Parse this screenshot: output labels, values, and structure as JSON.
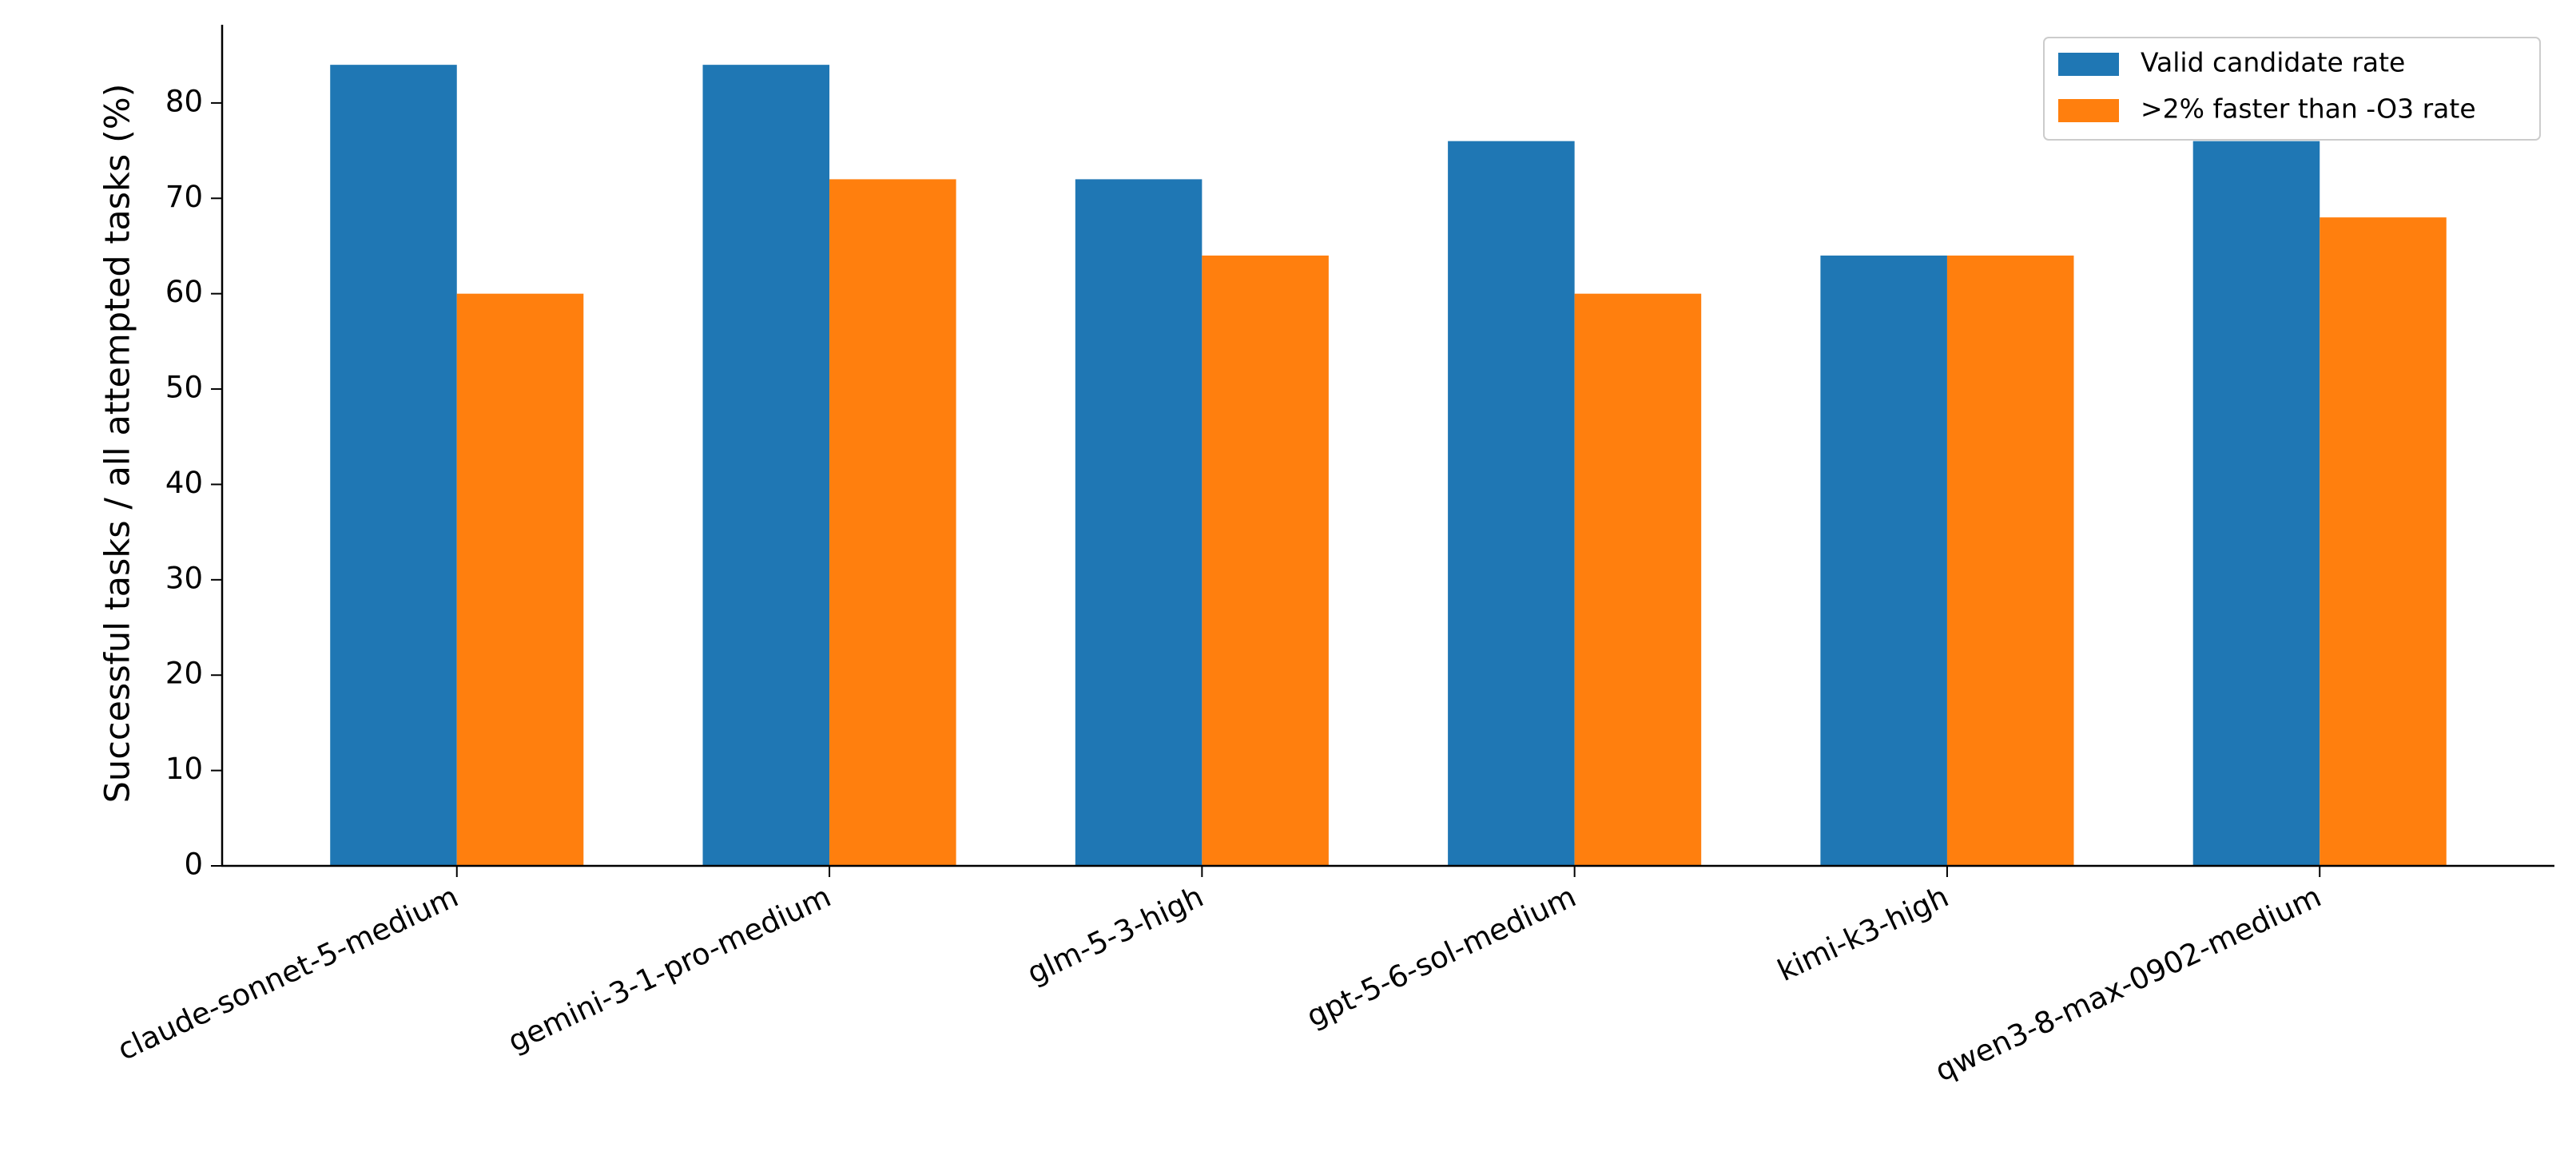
{
  "chart_data": {
    "type": "bar",
    "y_label": "Successful tasks / all attempted tasks (%)",
    "categories": [
      "claude-sonnet-5-medium",
      "gemini-3-1-pro-medium",
      "glm-5-3-high",
      "gpt-5-6-sol-medium",
      "kimi-k3-high",
      "qwen3-8-max-0902-medium"
    ],
    "series": [
      {
        "name": "Valid candidate rate",
        "color": "#1f77b4",
        "values": [
          84,
          84,
          72,
          76,
          64,
          76
        ]
      },
      {
        "name": ">2% faster than -O3 rate",
        "color": "#ff7f0e",
        "values": [
          60,
          72,
          64,
          60,
          64,
          68
        ]
      }
    ],
    "ylim": [
      0,
      88.2
    ],
    "yticks": [
      0,
      10,
      20,
      30,
      40,
      50,
      60,
      70,
      80
    ],
    "legend": "upper right",
    "grid": false
  }
}
